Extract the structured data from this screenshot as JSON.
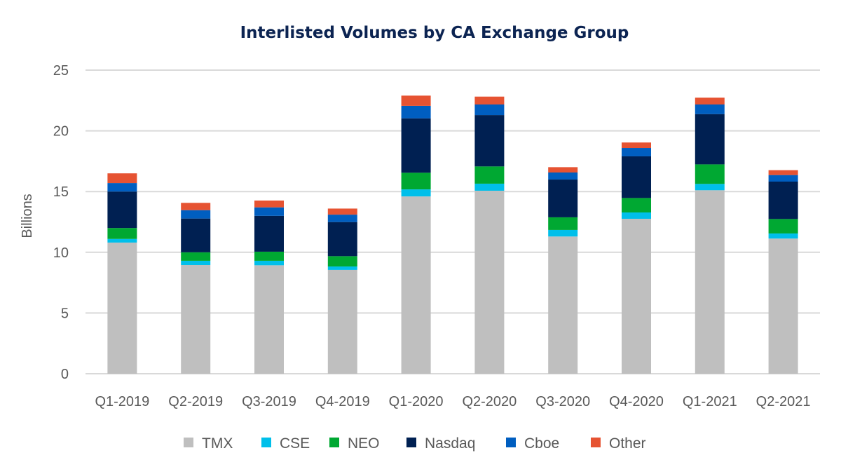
{
  "chart_data": {
    "type": "bar",
    "stacked": true,
    "title": "Interlisted Volumes by CA Exchange Group",
    "xlabel": "",
    "ylabel": "Billions",
    "ylim": [
      0,
      25
    ],
    "yticks": [
      0,
      5,
      10,
      15,
      20,
      25
    ],
    "grid": true,
    "legend_position": "bottom",
    "categories": [
      "Q1-2019",
      "Q2-2019",
      "Q3-2019",
      "Q4-2019",
      "Q1-2020",
      "Q2-2020",
      "Q3-2020",
      "Q4-2020",
      "Q1-2021",
      "Q2-2021"
    ],
    "series": [
      {
        "name": "TMX",
        "color": "#bfbfbf",
        "values": [
          10.8,
          8.95,
          8.93,
          8.55,
          14.6,
          15.07,
          11.3,
          12.76,
          15.11,
          11.13
        ]
      },
      {
        "name": "CSE",
        "color": "#00bfea",
        "values": [
          0.3,
          0.35,
          0.37,
          0.28,
          0.58,
          0.58,
          0.54,
          0.52,
          0.52,
          0.42
        ]
      },
      {
        "name": "NEO",
        "color": "#00a832",
        "values": [
          0.9,
          0.7,
          0.75,
          0.85,
          1.37,
          1.42,
          1.04,
          1.19,
          1.61,
          1.19
        ]
      },
      {
        "name": "Nasdaq",
        "color": "#002052",
        "values": [
          3.0,
          2.78,
          2.95,
          2.81,
          4.48,
          4.23,
          3.11,
          3.43,
          4.14,
          3.08
        ]
      },
      {
        "name": "Cboe",
        "color": "#005ec0",
        "values": [
          0.7,
          0.69,
          0.7,
          0.61,
          1.03,
          0.87,
          0.58,
          0.69,
          0.79,
          0.54
        ]
      },
      {
        "name": "Other",
        "color": "#e65332",
        "values": [
          0.8,
          0.6,
          0.56,
          0.5,
          0.84,
          0.65,
          0.44,
          0.45,
          0.56,
          0.4
        ]
      }
    ]
  }
}
